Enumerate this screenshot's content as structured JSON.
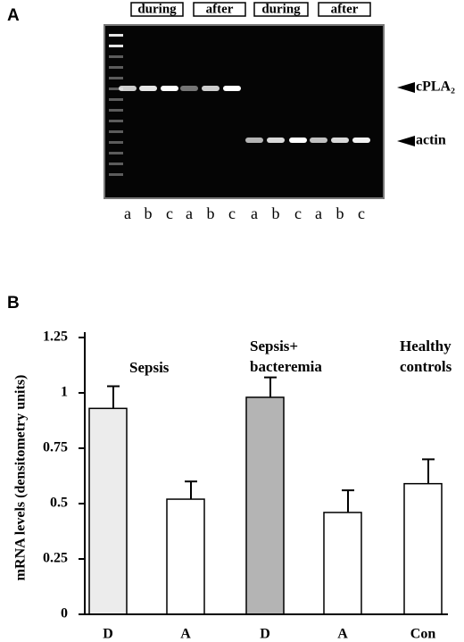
{
  "panel_a": {
    "label": "A",
    "groups": [
      "during",
      "after",
      "during",
      "after"
    ],
    "lanes": [
      "a",
      "b",
      "c",
      "a",
      "b",
      "c",
      "a",
      "b",
      "c",
      "a",
      "b",
      "c"
    ],
    "bands": [
      "cPLA₂",
      "actin"
    ]
  },
  "chart_data": {
    "type": "bar",
    "label": "B",
    "ylabel": "mRNA levels (densitometry units)",
    "categories": [
      "D",
      "A",
      "D",
      "A",
      "Con"
    ],
    "values": [
      0.93,
      0.52,
      0.98,
      0.46,
      0.59
    ],
    "errors": [
      0.1,
      0.08,
      0.09,
      0.1,
      0.11
    ],
    "colors": [
      "#ececec",
      "#ffffff",
      "#b4b4b4",
      "#ffffff",
      "#ffffff"
    ],
    "annotations": [
      [
        "Sepsis"
      ],
      [
        "Sepsis+",
        "bacteremia"
      ],
      [
        "Healthy",
        "controls"
      ]
    ],
    "ylim": [
      0,
      1.25
    ],
    "yticks": [
      0,
      0.25,
      0.5,
      0.75,
      1,
      1.25
    ]
  }
}
